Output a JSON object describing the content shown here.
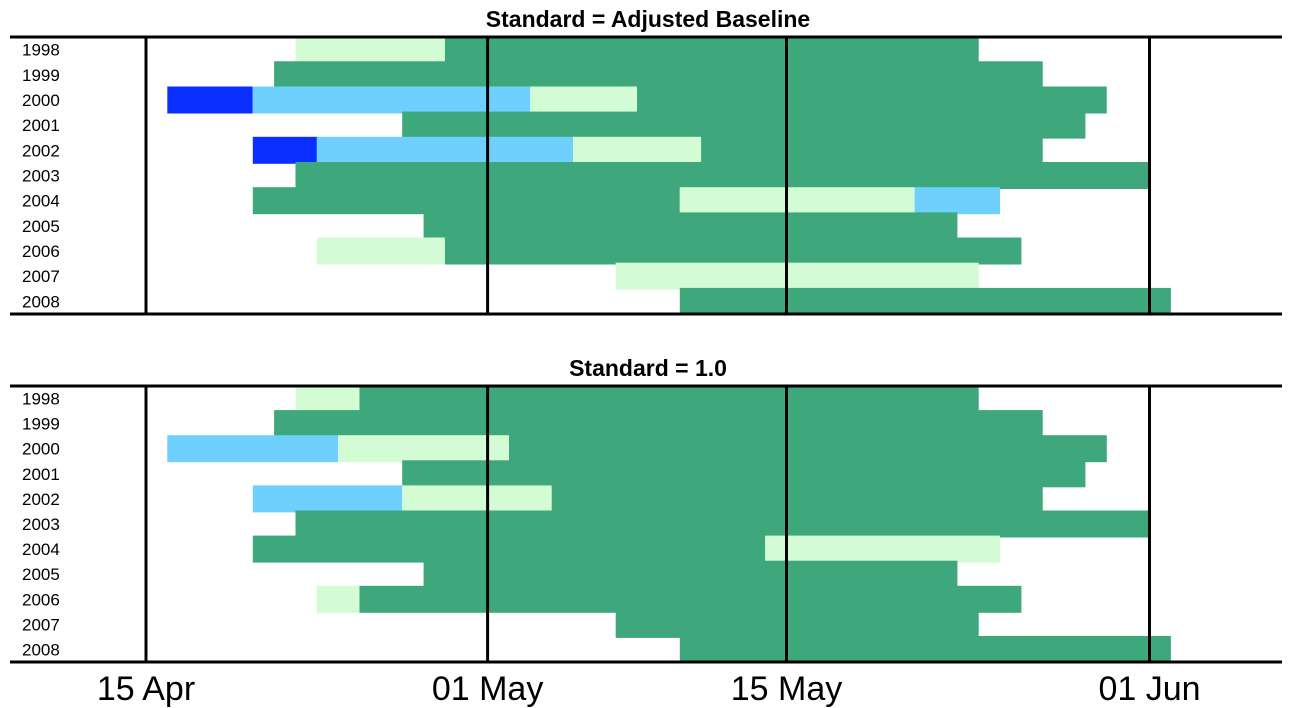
{
  "chart_data": [
    {
      "type": "bar",
      "subtype": "horizontal-timeline",
      "title": "Standard = Adjusted Baseline",
      "categories": [
        "1998",
        "1999",
        "2000",
        "2001",
        "2002",
        "2003",
        "2004",
        "2005",
        "2006",
        "2007",
        "2008"
      ],
      "x_ticks": [
        "15 Apr",
        "01 May",
        "15 May",
        "01 Jun"
      ],
      "xlim": [
        "2000-04-15",
        "2000-06-04"
      ],
      "colors": {
        "darkblue": "#0a2fff",
        "lightblue": "#6fd0fd",
        "palegreen": "#d4fcd4",
        "green": "#3ea77b"
      },
      "rows": [
        {
          "year": "1998",
          "segments": [
            {
              "start": "2000-04-22",
              "end": "2000-04-29",
              "color": "palegreen"
            },
            {
              "start": "2000-04-29",
              "end": "2000-05-24",
              "color": "green"
            }
          ]
        },
        {
          "year": "1999",
          "segments": [
            {
              "start": "2000-04-21",
              "end": "2000-05-27",
              "color": "green"
            }
          ]
        },
        {
          "year": "2000",
          "segments": [
            {
              "start": "2000-04-16",
              "end": "2000-04-20",
              "color": "darkblue"
            },
            {
              "start": "2000-04-20",
              "end": "2000-05-03",
              "color": "lightblue"
            },
            {
              "start": "2000-05-03",
              "end": "2000-05-08",
              "color": "palegreen"
            },
            {
              "start": "2000-05-08",
              "end": "2000-05-30",
              "color": "green"
            }
          ]
        },
        {
          "year": "2001",
          "segments": [
            {
              "start": "2000-04-27",
              "end": "2000-05-29",
              "color": "green"
            }
          ]
        },
        {
          "year": "2002",
          "segments": [
            {
              "start": "2000-04-20",
              "end": "2000-04-23",
              "color": "darkblue"
            },
            {
              "start": "2000-04-23",
              "end": "2000-05-05",
              "color": "lightblue"
            },
            {
              "start": "2000-05-05",
              "end": "2000-05-11",
              "color": "palegreen"
            },
            {
              "start": "2000-05-11",
              "end": "2000-05-27",
              "color": "green"
            }
          ]
        },
        {
          "year": "2003",
          "segments": [
            {
              "start": "2000-04-22",
              "end": "2000-06-01",
              "color": "green"
            }
          ]
        },
        {
          "year": "2004",
          "segments": [
            {
              "start": "2000-04-20",
              "end": "2000-05-10",
              "color": "green"
            },
            {
              "start": "2000-05-10",
              "end": "2000-05-21",
              "color": "palegreen"
            },
            {
              "start": "2000-05-21",
              "end": "2000-05-25",
              "color": "lightblue"
            }
          ]
        },
        {
          "year": "2005",
          "segments": [
            {
              "start": "2000-04-28",
              "end": "2000-05-23",
              "color": "green"
            }
          ]
        },
        {
          "year": "2006",
          "segments": [
            {
              "start": "2000-04-23",
              "end": "2000-04-29",
              "color": "palegreen"
            },
            {
              "start": "2000-04-29",
              "end": "2000-05-26",
              "color": "green"
            }
          ]
        },
        {
          "year": "2007",
          "segments": [
            {
              "start": "2000-05-07",
              "end": "2000-05-24",
              "color": "palegreen"
            }
          ]
        },
        {
          "year": "2008",
          "segments": [
            {
              "start": "2000-05-10",
              "end": "2000-06-02",
              "color": "green"
            }
          ]
        }
      ]
    },
    {
      "type": "bar",
      "subtype": "horizontal-timeline",
      "title": "Standard = 1.0",
      "categories": [
        "1998",
        "1999",
        "2000",
        "2001",
        "2002",
        "2003",
        "2004",
        "2005",
        "2006",
        "2007",
        "2008"
      ],
      "x_ticks": [
        "15 Apr",
        "01 May",
        "15 May",
        "01 Jun"
      ],
      "xlim": [
        "2000-04-15",
        "2000-06-04"
      ],
      "colors": {
        "lightblue": "#6fd0fd",
        "palegreen": "#d4fcd4",
        "green": "#3ea77b"
      },
      "rows": [
        {
          "year": "1998",
          "segments": [
            {
              "start": "2000-04-22",
              "end": "2000-04-25",
              "color": "palegreen"
            },
            {
              "start": "2000-04-25",
              "end": "2000-05-24",
              "color": "green"
            }
          ]
        },
        {
          "year": "1999",
          "segments": [
            {
              "start": "2000-04-21",
              "end": "2000-05-27",
              "color": "green"
            }
          ]
        },
        {
          "year": "2000",
          "segments": [
            {
              "start": "2000-04-16",
              "end": "2000-04-24",
              "color": "lightblue"
            },
            {
              "start": "2000-04-24",
              "end": "2000-05-02",
              "color": "palegreen"
            },
            {
              "start": "2000-05-02",
              "end": "2000-05-30",
              "color": "green"
            }
          ]
        },
        {
          "year": "2001",
          "segments": [
            {
              "start": "2000-04-27",
              "end": "2000-05-29",
              "color": "green"
            }
          ]
        },
        {
          "year": "2002",
          "segments": [
            {
              "start": "2000-04-20",
              "end": "2000-04-27",
              "color": "lightblue"
            },
            {
              "start": "2000-04-27",
              "end": "2000-05-04",
              "color": "palegreen"
            },
            {
              "start": "2000-05-04",
              "end": "2000-05-27",
              "color": "green"
            }
          ]
        },
        {
          "year": "2003",
          "segments": [
            {
              "start": "2000-04-22",
              "end": "2000-06-01",
              "color": "green"
            }
          ]
        },
        {
          "year": "2004",
          "segments": [
            {
              "start": "2000-04-20",
              "end": "2000-05-14",
              "color": "green"
            },
            {
              "start": "2000-05-14",
              "end": "2000-05-25",
              "color": "palegreen"
            }
          ]
        },
        {
          "year": "2005",
          "segments": [
            {
              "start": "2000-04-28",
              "end": "2000-05-23",
              "color": "green"
            }
          ]
        },
        {
          "year": "2006",
          "segments": [
            {
              "start": "2000-04-23",
              "end": "2000-04-25",
              "color": "palegreen"
            },
            {
              "start": "2000-04-25",
              "end": "2000-05-26",
              "color": "green"
            }
          ]
        },
        {
          "year": "2007",
          "segments": [
            {
              "start": "2000-05-07",
              "end": "2000-05-24",
              "color": "green"
            }
          ]
        },
        {
          "year": "2008",
          "segments": [
            {
              "start": "2000-05-10",
              "end": "2000-06-02",
              "color": "green"
            }
          ]
        }
      ]
    }
  ]
}
